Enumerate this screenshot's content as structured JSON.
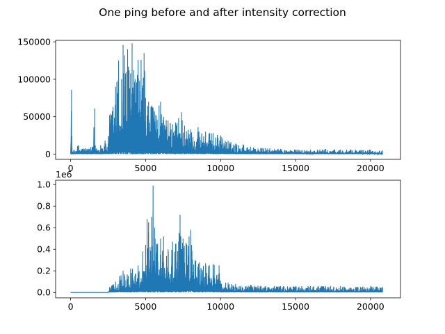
{
  "figure": {
    "suptitle": "One ping before and after intensity correction"
  },
  "chart_data": [
    {
      "type": "line",
      "title": "",
      "xlabel": "",
      "ylabel": "",
      "xlim": [
        -1000,
        22000
      ],
      "ylim": [
        -7000,
        152000
      ],
      "xticks": [
        0,
        5000,
        10000,
        15000,
        20000
      ],
      "xtick_labels": [
        "0",
        "5000",
        "10000",
        "15000",
        "20000"
      ],
      "yticks": [
        0,
        50000,
        100000,
        150000
      ],
      "ytick_labels": [
        "0",
        "50000",
        "100000",
        "150000"
      ],
      "offset_text": "",
      "grid": false,
      "color": "#1f77b4",
      "series": [
        {
          "x": [
            0,
            60,
            80,
            120,
            200,
            500,
            1000,
            1500,
            1600,
            1650,
            2000,
            2300,
            2500,
            2600,
            3000,
            3200,
            3400,
            3500,
            3600,
            3700,
            3800,
            3900,
            4000,
            4100,
            4200,
            4300,
            4400,
            4500,
            4600,
            4700,
            4800,
            4900,
            5000,
            5200,
            5400,
            5500,
            5700,
            5900,
            6000,
            6200,
            6500,
            6800,
            7000,
            7200,
            7400,
            7600,
            8000,
            8500,
            9000,
            9500,
            10000,
            10500,
            11000,
            11500,
            12000,
            13000,
            14000,
            15000,
            16000,
            17000,
            18000,
            19000,
            20000,
            20800
          ],
          "y": [
            1000,
            86000,
            24000,
            3000,
            5000,
            12000,
            8000,
            10000,
            61000,
            9000,
            12000,
            18000,
            14000,
            52000,
            90000,
            125000,
            100000,
            146000,
            132000,
            110000,
            140000,
            112000,
            108000,
            148000,
            112000,
            100000,
            96000,
            126000,
            98000,
            126000,
            92000,
            135000,
            75000,
            70000,
            65000,
            62000,
            52000,
            65000,
            70000,
            50000,
            45000,
            40000,
            42000,
            48000,
            56000,
            38000,
            33000,
            36000,
            30000,
            28000,
            25000,
            18000,
            14000,
            13000,
            10000,
            8000,
            7000,
            6000,
            6000,
            7000,
            6000,
            6000,
            6000,
            5000
          ]
        }
      ]
    },
    {
      "type": "line",
      "title": "",
      "xlabel": "",
      "ylabel": "",
      "xlim": [
        -1000,
        22000
      ],
      "ylim": [
        -0.05,
        1.04
      ],
      "xticks": [
        0,
        5000,
        10000,
        15000,
        20000
      ],
      "xtick_labels": [
        "0",
        "5000",
        "10000",
        "15000",
        "20000"
      ],
      "yticks": [
        0.0,
        0.2,
        0.4,
        0.6,
        0.8,
        1.0
      ],
      "ytick_labels": [
        "0.0",
        "0.2",
        "0.4",
        "0.6",
        "0.8",
        "1.0"
      ],
      "offset_text": "1e6",
      "grid": false,
      "color": "#1f77b4",
      "series": [
        {
          "x": [
            0,
            1000,
            2000,
            2500,
            2600,
            3000,
            3500,
            4000,
            4500,
            4800,
            5000,
            5100,
            5200,
            5300,
            5400,
            5500,
            5600,
            5800,
            6000,
            6200,
            6500,
            6800,
            7000,
            7200,
            7300,
            7500,
            7700,
            7900,
            8000,
            8300,
            8600,
            9000,
            9500,
            9900,
            10000,
            10500,
            11000,
            12000,
            13000,
            14000,
            15000,
            16000,
            17000,
            18000,
            19000,
            20000,
            20800
          ],
          "y": [
            0.0,
            0.0,
            0.0,
            0.0,
            0.05,
            0.1,
            0.2,
            0.22,
            0.25,
            0.38,
            0.44,
            0.68,
            0.65,
            0.42,
            0.7,
            0.99,
            0.6,
            0.45,
            0.5,
            0.52,
            0.4,
            0.47,
            0.45,
            0.47,
            0.72,
            0.5,
            0.46,
            0.52,
            0.58,
            0.3,
            0.28,
            0.27,
            0.26,
            0.25,
            0.1,
            0.09,
            0.08,
            0.07,
            0.06,
            0.06,
            0.06,
            0.06,
            0.06,
            0.06,
            0.05,
            0.06,
            0.05
          ]
        }
      ]
    }
  ]
}
